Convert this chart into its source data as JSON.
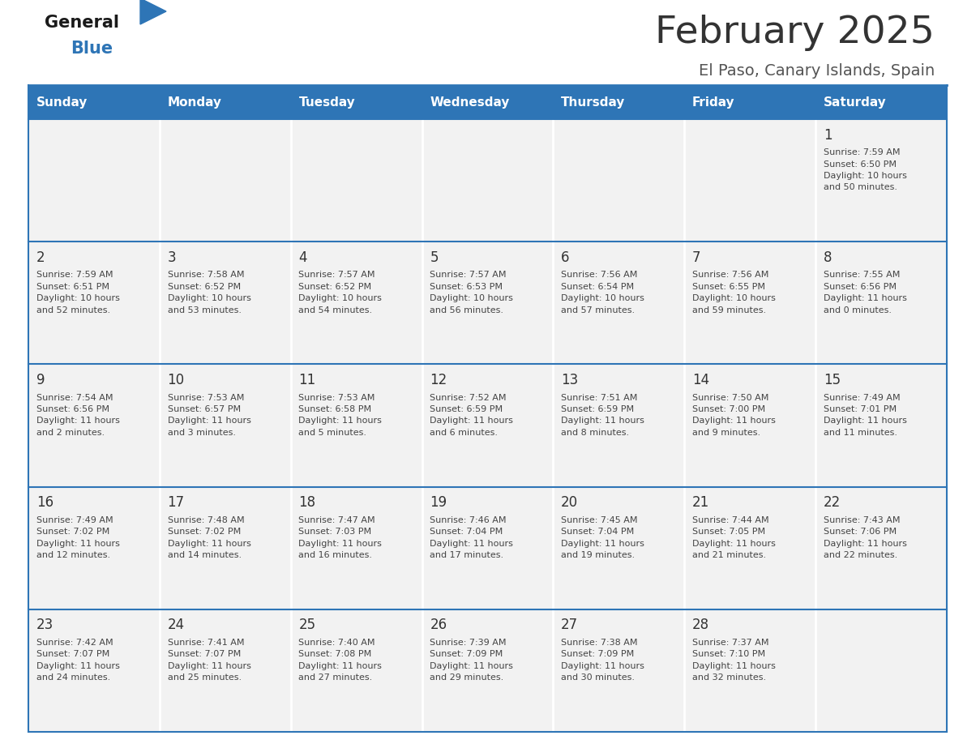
{
  "title": "February 2025",
  "subtitle": "El Paso, Canary Islands, Spain",
  "header_color": "#2E75B6",
  "header_text_color": "#FFFFFF",
  "cell_bg_color": "#F2F2F2",
  "border_color": "#2E75B6",
  "day_number_color": "#333333",
  "text_color": "#444444",
  "days_of_week": [
    "Sunday",
    "Monday",
    "Tuesday",
    "Wednesday",
    "Thursday",
    "Friday",
    "Saturday"
  ],
  "calendar_data": [
    [
      {
        "day": 0,
        "info": ""
      },
      {
        "day": 0,
        "info": ""
      },
      {
        "day": 0,
        "info": ""
      },
      {
        "day": 0,
        "info": ""
      },
      {
        "day": 0,
        "info": ""
      },
      {
        "day": 0,
        "info": ""
      },
      {
        "day": 1,
        "info": "Sunrise: 7:59 AM\nSunset: 6:50 PM\nDaylight: 10 hours\nand 50 minutes."
      }
    ],
    [
      {
        "day": 2,
        "info": "Sunrise: 7:59 AM\nSunset: 6:51 PM\nDaylight: 10 hours\nand 52 minutes."
      },
      {
        "day": 3,
        "info": "Sunrise: 7:58 AM\nSunset: 6:52 PM\nDaylight: 10 hours\nand 53 minutes."
      },
      {
        "day": 4,
        "info": "Sunrise: 7:57 AM\nSunset: 6:52 PM\nDaylight: 10 hours\nand 54 minutes."
      },
      {
        "day": 5,
        "info": "Sunrise: 7:57 AM\nSunset: 6:53 PM\nDaylight: 10 hours\nand 56 minutes."
      },
      {
        "day": 6,
        "info": "Sunrise: 7:56 AM\nSunset: 6:54 PM\nDaylight: 10 hours\nand 57 minutes."
      },
      {
        "day": 7,
        "info": "Sunrise: 7:56 AM\nSunset: 6:55 PM\nDaylight: 10 hours\nand 59 minutes."
      },
      {
        "day": 8,
        "info": "Sunrise: 7:55 AM\nSunset: 6:56 PM\nDaylight: 11 hours\nand 0 minutes."
      }
    ],
    [
      {
        "day": 9,
        "info": "Sunrise: 7:54 AM\nSunset: 6:56 PM\nDaylight: 11 hours\nand 2 minutes."
      },
      {
        "day": 10,
        "info": "Sunrise: 7:53 AM\nSunset: 6:57 PM\nDaylight: 11 hours\nand 3 minutes."
      },
      {
        "day": 11,
        "info": "Sunrise: 7:53 AM\nSunset: 6:58 PM\nDaylight: 11 hours\nand 5 minutes."
      },
      {
        "day": 12,
        "info": "Sunrise: 7:52 AM\nSunset: 6:59 PM\nDaylight: 11 hours\nand 6 minutes."
      },
      {
        "day": 13,
        "info": "Sunrise: 7:51 AM\nSunset: 6:59 PM\nDaylight: 11 hours\nand 8 minutes."
      },
      {
        "day": 14,
        "info": "Sunrise: 7:50 AM\nSunset: 7:00 PM\nDaylight: 11 hours\nand 9 minutes."
      },
      {
        "day": 15,
        "info": "Sunrise: 7:49 AM\nSunset: 7:01 PM\nDaylight: 11 hours\nand 11 minutes."
      }
    ],
    [
      {
        "day": 16,
        "info": "Sunrise: 7:49 AM\nSunset: 7:02 PM\nDaylight: 11 hours\nand 12 minutes."
      },
      {
        "day": 17,
        "info": "Sunrise: 7:48 AM\nSunset: 7:02 PM\nDaylight: 11 hours\nand 14 minutes."
      },
      {
        "day": 18,
        "info": "Sunrise: 7:47 AM\nSunset: 7:03 PM\nDaylight: 11 hours\nand 16 minutes."
      },
      {
        "day": 19,
        "info": "Sunrise: 7:46 AM\nSunset: 7:04 PM\nDaylight: 11 hours\nand 17 minutes."
      },
      {
        "day": 20,
        "info": "Sunrise: 7:45 AM\nSunset: 7:04 PM\nDaylight: 11 hours\nand 19 minutes."
      },
      {
        "day": 21,
        "info": "Sunrise: 7:44 AM\nSunset: 7:05 PM\nDaylight: 11 hours\nand 21 minutes."
      },
      {
        "day": 22,
        "info": "Sunrise: 7:43 AM\nSunset: 7:06 PM\nDaylight: 11 hours\nand 22 minutes."
      }
    ],
    [
      {
        "day": 23,
        "info": "Sunrise: 7:42 AM\nSunset: 7:07 PM\nDaylight: 11 hours\nand 24 minutes."
      },
      {
        "day": 24,
        "info": "Sunrise: 7:41 AM\nSunset: 7:07 PM\nDaylight: 11 hours\nand 25 minutes."
      },
      {
        "day": 25,
        "info": "Sunrise: 7:40 AM\nSunset: 7:08 PM\nDaylight: 11 hours\nand 27 minutes."
      },
      {
        "day": 26,
        "info": "Sunrise: 7:39 AM\nSunset: 7:09 PM\nDaylight: 11 hours\nand 29 minutes."
      },
      {
        "day": 27,
        "info": "Sunrise: 7:38 AM\nSunset: 7:09 PM\nDaylight: 11 hours\nand 30 minutes."
      },
      {
        "day": 28,
        "info": "Sunrise: 7:37 AM\nSunset: 7:10 PM\nDaylight: 11 hours\nand 32 minutes."
      },
      {
        "day": 0,
        "info": ""
      }
    ]
  ],
  "fig_width": 11.88,
  "fig_height": 9.18,
  "dpi": 100
}
